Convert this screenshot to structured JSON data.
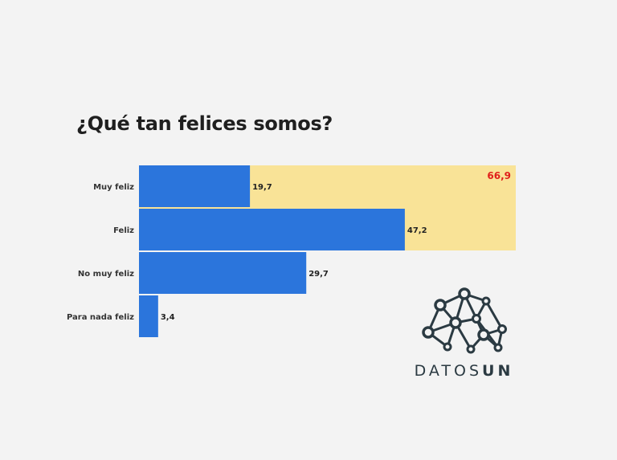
{
  "chart_data": {
    "type": "bar",
    "orientation": "horizontal",
    "title": "¿Qué tan felices somos?",
    "categories": [
      "Muy feliz",
      "Feliz",
      "No muy feliz",
      "Para nada feliz"
    ],
    "values": [
      19.7,
      47.2,
      29.7,
      3.4
    ],
    "value_labels": [
      "19,7",
      "47,2",
      "29,7",
      "3,4"
    ],
    "bar_color": "#2b75dc",
    "highlight": {
      "categories": [
        "Muy feliz",
        "Feliz"
      ],
      "value": 66.9,
      "label": "66,9",
      "color": "#f9e397",
      "label_color": "#e0201b"
    },
    "xlim": [
      0,
      66.9
    ],
    "grid": false,
    "legend": "none"
  },
  "logo": {
    "text_light": "DATOS",
    "text_bold": "UN",
    "color": "#2b3a42"
  }
}
